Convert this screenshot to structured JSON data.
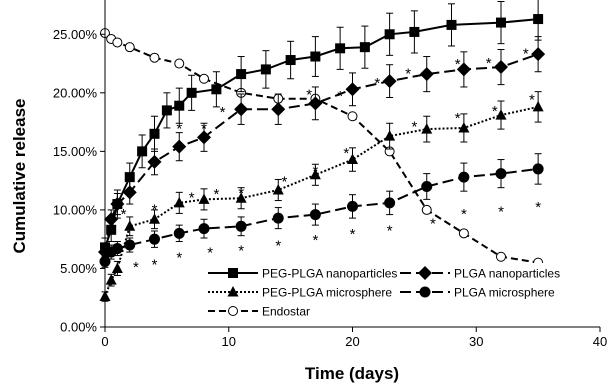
{
  "chart_data": {
    "type": "line",
    "xlabel": "Time (days)",
    "ylabel": "Cumulative release",
    "xlim": [
      0,
      40
    ],
    "ylim": [
      0,
      0.275
    ],
    "xticks": [
      "0",
      "10",
      "20",
      "30",
      "40"
    ],
    "yticks": [
      "0.00%",
      "5.00%",
      "10.00%",
      "15.00%",
      "20.00%",
      "25.00%"
    ],
    "grid": false,
    "legend_position": "bottom-right",
    "series": [
      {
        "name": "PEG-PLGA nanoparticles",
        "marker": "square",
        "line": "solid",
        "x": [
          0,
          0.5,
          1,
          2,
          3,
          4,
          5,
          6,
          7,
          9,
          11,
          13,
          15,
          17,
          19,
          21,
          23,
          25,
          28,
          32,
          35
        ],
        "y": [
          0.068,
          0.083,
          0.105,
          0.128,
          0.15,
          0.165,
          0.185,
          0.189,
          0.2,
          0.203,
          0.216,
          0.22,
          0.228,
          0.231,
          0.238,
          0.239,
          0.25,
          0.252,
          0.258,
          0.26,
          0.263
        ],
        "err": [
          0.008,
          0.01,
          0.012,
          0.012,
          0.014,
          0.015,
          0.015,
          0.015,
          0.015,
          0.015,
          0.015,
          0.016,
          0.016,
          0.017,
          0.018,
          0.018,
          0.018,
          0.018,
          0.018,
          0.018,
          0.018
        ]
      },
      {
        "name": "PEG-PLGA microsphere",
        "marker": "triangle",
        "line": "dotted",
        "x": [
          0,
          0.5,
          1,
          2,
          4,
          6,
          8,
          11,
          14,
          17,
          20,
          23,
          26,
          29,
          32,
          35
        ],
        "y": [
          0.026,
          0.04,
          0.05,
          0.086,
          0.092,
          0.106,
          0.109,
          0.11,
          0.117,
          0.13,
          0.143,
          0.163,
          0.169,
          0.17,
          0.181,
          0.188
        ],
        "err": [
          0.004,
          0.005,
          0.006,
          0.008,
          0.008,
          0.009,
          0.009,
          0.009,
          0.009,
          0.009,
          0.01,
          0.011,
          0.011,
          0.012,
          0.012,
          0.013
        ]
      },
      {
        "name": "PLGA nanoparticles",
        "marker": "diamond",
        "line": "long-dash",
        "x": [
          0,
          0.5,
          1,
          2,
          4,
          6,
          8,
          11,
          14,
          17,
          20,
          23,
          26,
          29,
          32,
          35
        ],
        "y": [
          0.064,
          0.092,
          0.105,
          0.115,
          0.141,
          0.154,
          0.162,
          0.186,
          0.186,
          0.191,
          0.203,
          0.21,
          0.216,
          0.22,
          0.222,
          0.233
        ],
        "err": [
          0.006,
          0.008,
          0.009,
          0.01,
          0.011,
          0.012,
          0.012,
          0.013,
          0.013,
          0.014,
          0.014,
          0.014,
          0.015,
          0.015,
          0.015,
          0.015
        ]
      },
      {
        "name": "PLGA microsphere",
        "marker": "circle",
        "line": "long-dash",
        "x": [
          0,
          0.5,
          1,
          2,
          4,
          6,
          8,
          11,
          14,
          17,
          20,
          23,
          26,
          29,
          32,
          35
        ],
        "y": [
          0.056,
          0.064,
          0.067,
          0.07,
          0.075,
          0.08,
          0.084,
          0.086,
          0.093,
          0.096,
          0.103,
          0.106,
          0.12,
          0.128,
          0.131,
          0.135
        ],
        "err": [
          0.005,
          0.006,
          0.006,
          0.006,
          0.007,
          0.007,
          0.008,
          0.008,
          0.009,
          0.009,
          0.01,
          0.01,
          0.011,
          0.012,
          0.012,
          0.013
        ]
      },
      {
        "name": "Endostar",
        "marker": "open-circle",
        "line": "dashed",
        "x": [
          0,
          0.5,
          1,
          2,
          4,
          6,
          8,
          11,
          14,
          17,
          20,
          23,
          26,
          29,
          32,
          35
        ],
        "y": [
          0.251,
          0.246,
          0.243,
          0.239,
          0.23,
          0.225,
          0.212,
          0.2,
          0.195,
          0.195,
          0.18,
          0.15,
          0.1,
          0.08,
          0.06,
          0.055
        ],
        "err": [
          0,
          0,
          0,
          0,
          0,
          0,
          0,
          0,
          0,
          0,
          0,
          0,
          0,
          0,
          0,
          0
        ]
      }
    ],
    "annotations": [
      {
        "text": "*",
        "x": 22,
        "y": 0.211
      },
      {
        "text": "*",
        "x": 24.5,
        "y": 0.219
      },
      {
        "text": "*",
        "x": 28.5,
        "y": 0.227
      },
      {
        "text": "*",
        "x": 31,
        "y": 0.228
      },
      {
        "text": "*",
        "x": 34,
        "y": 0.236
      },
      {
        "text": "*",
        "x": 19,
        "y": 0.2
      },
      {
        "text": "*",
        "x": 16.5,
        "y": 0.201
      },
      {
        "text": "*",
        "x": 9.5,
        "y": 0.186
      },
      {
        "text": "*",
        "x": 6,
        "y": 0.172
      },
      {
        "text": "*",
        "x": 8,
        "y": 0.172
      },
      {
        "text": "*",
        "x": 25,
        "y": 0.174
      },
      {
        "text": "*",
        "x": 28.5,
        "y": 0.181
      },
      {
        "text": "*",
        "x": 31.5,
        "y": 0.187
      },
      {
        "text": "*",
        "x": 34.5,
        "y": 0.197
      },
      {
        "text": "*",
        "x": 19.5,
        "y": 0.151
      },
      {
        "text": "*",
        "x": 17,
        "y": 0.136
      },
      {
        "text": "*",
        "x": 14.5,
        "y": 0.127
      },
      {
        "text": "*",
        "x": 11,
        "y": 0.117
      },
      {
        "text": "*",
        "x": 4,
        "y": 0.103
      },
      {
        "text": "*",
        "x": 7,
        "y": 0.113
      },
      {
        "text": "*",
        "x": 9,
        "y": 0.116
      },
      {
        "text": "*",
        "x": 1.5,
        "y": 0.099
      },
      {
        "text": "*",
        "x": 26.5,
        "y": 0.091
      },
      {
        "text": "*",
        "x": 29,
        "y": 0.099
      },
      {
        "text": "*",
        "x": 32,
        "y": 0.101
      },
      {
        "text": "*",
        "x": 35,
        "y": 0.105
      },
      {
        "text": "*",
        "x": 23,
        "y": 0.085
      },
      {
        "text": "*",
        "x": 20,
        "y": 0.082
      },
      {
        "text": "*",
        "x": 17,
        "y": 0.077
      },
      {
        "text": "*",
        "x": 14,
        "y": 0.072
      },
      {
        "text": "*",
        "x": 11,
        "y": 0.068
      },
      {
        "text": "*",
        "x": 8.5,
        "y": 0.066
      },
      {
        "text": "*",
        "x": 6,
        "y": 0.062
      },
      {
        "text": "*",
        "x": 4,
        "y": 0.056
      },
      {
        "text": "*",
        "x": 2.5,
        "y": 0.054
      }
    ]
  }
}
